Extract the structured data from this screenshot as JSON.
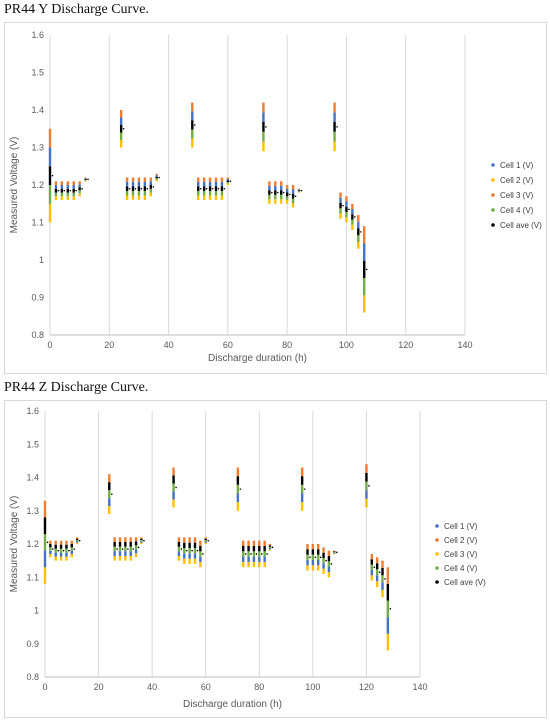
{
  "charts": [
    {
      "caption": "PR44 Y Discharge Curve.",
      "chart_data": {
        "type": "scatter",
        "xlabel": "Discharge duration (h)",
        "ylabel": "Measured Voltage (V)",
        "xlim": [
          0,
          140
        ],
        "ylim": [
          0.8,
          1.6
        ],
        "xticks": [
          "0",
          "20",
          "40",
          "60",
          "80",
          "100",
          "120",
          "140"
        ],
        "yticks": [
          "0.8",
          "0.9",
          "1",
          "1.1",
          "1.2",
          "1.3",
          "1.4",
          "1.5",
          "1.6"
        ],
        "grid": "vertical",
        "legend": "right",
        "series": [
          {
            "name": "Cell 1 (V)",
            "color": "#4472C4"
          },
          {
            "name": "Cell 2 (V)",
            "color": "#FFC000"
          },
          {
            "name": "Cell 3 (V)",
            "color": "#ED7D31"
          },
          {
            "name": "Cell 4 (V)",
            "color": "#70AD47"
          },
          {
            "name": "Cell ave (V)",
            "color": "#000000"
          }
        ],
        "columns": [
          {
            "x": 0,
            "y1": 1.1,
            "y2": 1.35
          },
          {
            "x": 2,
            "y1": 1.16,
            "y2": 1.21
          },
          {
            "x": 4,
            "y1": 1.16,
            "y2": 1.21
          },
          {
            "x": 6,
            "y1": 1.16,
            "y2": 1.21
          },
          {
            "x": 8,
            "y1": 1.16,
            "y2": 1.21
          },
          {
            "x": 10,
            "y1": 1.17,
            "y2": 1.21
          },
          {
            "x": 12,
            "y1": 1.21,
            "y2": 1.22
          },
          {
            "x": 24,
            "y1": 1.3,
            "y2": 1.4
          },
          {
            "x": 26,
            "y1": 1.16,
            "y2": 1.22
          },
          {
            "x": 28,
            "y1": 1.16,
            "y2": 1.22
          },
          {
            "x": 30,
            "y1": 1.16,
            "y2": 1.22
          },
          {
            "x": 32,
            "y1": 1.16,
            "y2": 1.22
          },
          {
            "x": 34,
            "y1": 1.17,
            "y2": 1.22
          },
          {
            "x": 36,
            "y1": 1.21,
            "y2": 1.23
          },
          {
            "x": 48,
            "y1": 1.3,
            "y2": 1.42
          },
          {
            "x": 50,
            "y1": 1.16,
            "y2": 1.22
          },
          {
            "x": 52,
            "y1": 1.16,
            "y2": 1.22
          },
          {
            "x": 54,
            "y1": 1.16,
            "y2": 1.22
          },
          {
            "x": 56,
            "y1": 1.16,
            "y2": 1.22
          },
          {
            "x": 58,
            "y1": 1.16,
            "y2": 1.22
          },
          {
            "x": 60,
            "y1": 1.2,
            "y2": 1.22
          },
          {
            "x": 72,
            "y1": 1.29,
            "y2": 1.42
          },
          {
            "x": 74,
            "y1": 1.15,
            "y2": 1.21
          },
          {
            "x": 76,
            "y1": 1.15,
            "y2": 1.21
          },
          {
            "x": 78,
            "y1": 1.15,
            "y2": 1.21
          },
          {
            "x": 80,
            "y1": 1.15,
            "y2": 1.2
          },
          {
            "x": 82,
            "y1": 1.14,
            "y2": 1.2
          },
          {
            "x": 84,
            "y1": 1.18,
            "y2": 1.19
          },
          {
            "x": 96,
            "y1": 1.29,
            "y2": 1.42
          },
          {
            "x": 98,
            "y1": 1.11,
            "y2": 1.18
          },
          {
            "x": 100,
            "y1": 1.1,
            "y2": 1.17
          },
          {
            "x": 102,
            "y1": 1.08,
            "y2": 1.15
          },
          {
            "x": 104,
            "y1": 1.03,
            "y2": 1.12
          },
          {
            "x": 106,
            "y1": 0.86,
            "y2": 1.09
          }
        ]
      }
    },
    {
      "caption": "PR44 Z Discharge Curve.",
      "chart_data": {
        "type": "scatter",
        "xlabel": "Discharge duration (h)",
        "ylabel": "Measured Voltage (V)",
        "xlim": [
          0,
          140
        ],
        "ylim": [
          0.8,
          1.6
        ],
        "xticks": [
          "0",
          "20",
          "40",
          "60",
          "80",
          "100",
          "120",
          "140"
        ],
        "yticks": [
          "0.8",
          "0.9",
          "1",
          "1.1",
          "1.2",
          "1.3",
          "1.4",
          "1.5",
          "1.6"
        ],
        "grid": "vertical",
        "legend": "right",
        "series": [
          {
            "name": "Cell 1 (V)",
            "color": "#4472C4"
          },
          {
            "name": "Cell 2 (V)",
            "color": "#ED7D31"
          },
          {
            "name": "Cell 3 (V)",
            "color": "#FFC000"
          },
          {
            "name": "Cell 4 (V)",
            "color": "#70AD47"
          },
          {
            "name": "Cell ave (V)",
            "color": "#000000"
          }
        ],
        "columns": [
          {
            "x": 0,
            "y1": 1.08,
            "y2": 1.33
          },
          {
            "x": 2,
            "y1": 1.16,
            "y2": 1.21
          },
          {
            "x": 4,
            "y1": 1.15,
            "y2": 1.21
          },
          {
            "x": 6,
            "y1": 1.15,
            "y2": 1.21
          },
          {
            "x": 8,
            "y1": 1.15,
            "y2": 1.21
          },
          {
            "x": 10,
            "y1": 1.16,
            "y2": 1.21
          },
          {
            "x": 12,
            "y1": 1.2,
            "y2": 1.22
          },
          {
            "x": 24,
            "y1": 1.29,
            "y2": 1.41
          },
          {
            "x": 26,
            "y1": 1.15,
            "y2": 1.22
          },
          {
            "x": 28,
            "y1": 1.15,
            "y2": 1.22
          },
          {
            "x": 30,
            "y1": 1.15,
            "y2": 1.22
          },
          {
            "x": 32,
            "y1": 1.15,
            "y2": 1.22
          },
          {
            "x": 34,
            "y1": 1.16,
            "y2": 1.22
          },
          {
            "x": 36,
            "y1": 1.2,
            "y2": 1.22
          },
          {
            "x": 48,
            "y1": 1.31,
            "y2": 1.43
          },
          {
            "x": 50,
            "y1": 1.15,
            "y2": 1.22
          },
          {
            "x": 52,
            "y1": 1.14,
            "y2": 1.22
          },
          {
            "x": 54,
            "y1": 1.14,
            "y2": 1.22
          },
          {
            "x": 56,
            "y1": 1.14,
            "y2": 1.22
          },
          {
            "x": 58,
            "y1": 1.13,
            "y2": 1.21
          },
          {
            "x": 60,
            "y1": 1.2,
            "y2": 1.22
          },
          {
            "x": 72,
            "y1": 1.3,
            "y2": 1.43
          },
          {
            "x": 74,
            "y1": 1.13,
            "y2": 1.21
          },
          {
            "x": 76,
            "y1": 1.13,
            "y2": 1.21
          },
          {
            "x": 78,
            "y1": 1.13,
            "y2": 1.21
          },
          {
            "x": 80,
            "y1": 1.13,
            "y2": 1.21
          },
          {
            "x": 82,
            "y1": 1.13,
            "y2": 1.21
          },
          {
            "x": 84,
            "y1": 1.18,
            "y2": 1.2
          },
          {
            "x": 96,
            "y1": 1.3,
            "y2": 1.43
          },
          {
            "x": 98,
            "y1": 1.12,
            "y2": 1.2
          },
          {
            "x": 100,
            "y1": 1.12,
            "y2": 1.2
          },
          {
            "x": 102,
            "y1": 1.12,
            "y2": 1.2
          },
          {
            "x": 104,
            "y1": 1.11,
            "y2": 1.19
          },
          {
            "x": 106,
            "y1": 1.1,
            "y2": 1.18
          },
          {
            "x": 108,
            "y1": 1.17,
            "y2": 1.18
          },
          {
            "x": 120,
            "y1": 1.31,
            "y2": 1.44
          },
          {
            "x": 122,
            "y1": 1.09,
            "y2": 1.17
          },
          {
            "x": 124,
            "y1": 1.07,
            "y2": 1.16
          },
          {
            "x": 126,
            "y1": 1.04,
            "y2": 1.15
          },
          {
            "x": 128,
            "y1": 0.88,
            "y2": 1.13
          }
        ]
      }
    }
  ]
}
